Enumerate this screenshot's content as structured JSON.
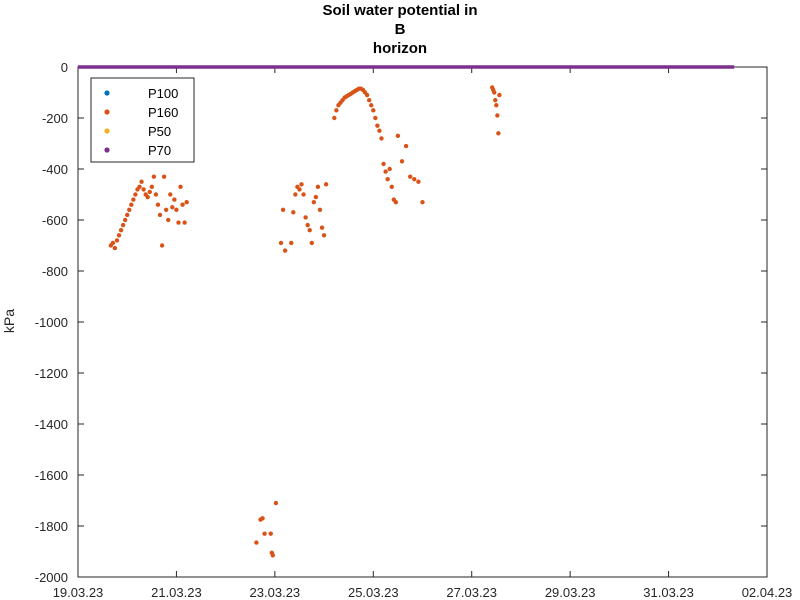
{
  "chart_data": {
    "type": "scatter",
    "title": [
      "Soil water potential in",
      "B",
      "horizon"
    ],
    "ylabel": "kPa",
    "xlabel": "",
    "x_scale": "date",
    "xlim": [
      "19.03.23",
      "02.04.23"
    ],
    "ylim": [
      -2000,
      0
    ],
    "xticks": [
      "19.03.23",
      "21.03.23",
      "23.03.23",
      "25.03.23",
      "27.03.23",
      "29.03.23",
      "31.03.23",
      "02.04.23"
    ],
    "yticks": [
      0,
      -200,
      -400,
      -600,
      -800,
      -1000,
      -1200,
      -1400,
      -1600,
      -1800,
      -2000
    ],
    "legend_position": "top-left",
    "grid": false,
    "series": [
      {
        "name": "P100",
        "color": "#0072BD",
        "marker": "dot",
        "points": []
      },
      {
        "name": "P160",
        "color": "#D95319",
        "marker": "dot",
        "points": [
          [
            "19.03.23 16:00",
            -700
          ],
          [
            "19.03.23 17:00",
            -690
          ],
          [
            "19.03.23 18:00",
            -710
          ],
          [
            "19.03.23 19:00",
            -680
          ],
          [
            "19.03.23 20:00",
            -660
          ],
          [
            "19.03.23 21:00",
            -640
          ],
          [
            "19.03.23 22:00",
            -620
          ],
          [
            "19.03.23 23:00",
            -600
          ],
          [
            "20.03.23 00:00",
            -580
          ],
          [
            "20.03.23 01:00",
            -560
          ],
          [
            "20.03.23 02:00",
            -540
          ],
          [
            "20.03.23 03:00",
            -520
          ],
          [
            "20.03.23 04:00",
            -500
          ],
          [
            "20.03.23 05:00",
            -480
          ],
          [
            "20.03.23 06:00",
            -470
          ],
          [
            "20.03.23 07:00",
            -450
          ],
          [
            "20.03.23 08:00",
            -480
          ],
          [
            "20.03.23 09:00",
            -500
          ],
          [
            "20.03.23 10:00",
            -510
          ],
          [
            "20.03.23 11:00",
            -490
          ],
          [
            "20.03.23 12:00",
            -470
          ],
          [
            "20.03.23 13:00",
            -430
          ],
          [
            "20.03.23 14:00",
            -500
          ],
          [
            "20.03.23 15:00",
            -540
          ],
          [
            "20.03.23 16:00",
            -580
          ],
          [
            "20.03.23 17:00",
            -700
          ],
          [
            "20.03.23 18:00",
            -430
          ],
          [
            "20.03.23 19:00",
            -560
          ],
          [
            "20.03.23 20:00",
            -600
          ],
          [
            "20.03.23 21:00",
            -500
          ],
          [
            "20.03.23 22:00",
            -550
          ],
          [
            "20.03.23 23:00",
            -520
          ],
          [
            "21.03.23 00:00",
            -560
          ],
          [
            "21.03.23 01:00",
            -610
          ],
          [
            "21.03.23 02:00",
            -470
          ],
          [
            "21.03.23 03:00",
            -540
          ],
          [
            "21.03.23 04:00",
            -610
          ],
          [
            "21.03.23 05:00",
            -530
          ],
          [
            "22.03.23 15:00",
            -1865
          ],
          [
            "22.03.23 17:00",
            -1775
          ],
          [
            "22.03.23 18:00",
            -1770
          ],
          [
            "22.03.23 19:00",
            -1830
          ],
          [
            "22.03.23 22:00",
            -1830
          ],
          [
            "22.03.23 22:30",
            -1905
          ],
          [
            "22.03.23 23:00",
            -1915
          ],
          [
            "23.03.23 00:30",
            -1710
          ],
          [
            "23.03.23 03:00",
            -690
          ],
          [
            "23.03.23 04:00",
            -560
          ],
          [
            "23.03.23 05:00",
            -720
          ],
          [
            "23.03.23 08:00",
            -690
          ],
          [
            "23.03.23 09:00",
            -570
          ],
          [
            "23.03.23 10:00",
            -500
          ],
          [
            "23.03.23 11:00",
            -470
          ],
          [
            "23.03.23 12:00",
            -480
          ],
          [
            "23.03.23 13:00",
            -460
          ],
          [
            "23.03.23 14:00",
            -500
          ],
          [
            "23.03.23 15:00",
            -590
          ],
          [
            "23.03.23 16:00",
            -620
          ],
          [
            "23.03.23 17:00",
            -640
          ],
          [
            "23.03.23 18:00",
            -690
          ],
          [
            "23.03.23 19:00",
            -530
          ],
          [
            "23.03.23 20:00",
            -510
          ],
          [
            "23.03.23 21:00",
            -470
          ],
          [
            "23.03.23 22:00",
            -560
          ],
          [
            "23.03.23 23:00",
            -630
          ],
          [
            "24.03.23 00:00",
            -660
          ],
          [
            "24.03.23 01:00",
            -460
          ],
          [
            "24.03.23 05:00",
            -200
          ],
          [
            "24.03.23 06:00",
            -170
          ],
          [
            "24.03.23 07:00",
            -150
          ],
          [
            "24.03.23 08:00",
            -140
          ],
          [
            "24.03.23 09:00",
            -130
          ],
          [
            "24.03.23 10:00",
            -120
          ],
          [
            "24.03.23 11:00",
            -115
          ],
          [
            "24.03.23 12:00",
            -110
          ],
          [
            "24.03.23 13:00",
            -105
          ],
          [
            "24.03.23 14:00",
            -100
          ],
          [
            "24.03.23 15:00",
            -95
          ],
          [
            "24.03.23 16:00",
            -90
          ],
          [
            "24.03.23 17:00",
            -85
          ],
          [
            "24.03.23 18:00",
            -85
          ],
          [
            "24.03.23 19:00",
            -90
          ],
          [
            "24.03.23 20:00",
            -100
          ],
          [
            "24.03.23 21:00",
            -110
          ],
          [
            "24.03.23 22:00",
            -130
          ],
          [
            "24.03.23 23:00",
            -150
          ],
          [
            "25.03.23 00:00",
            -170
          ],
          [
            "25.03.23 01:00",
            -200
          ],
          [
            "25.03.23 02:00",
            -230
          ],
          [
            "25.03.23 03:00",
            -250
          ],
          [
            "25.03.23 04:00",
            -280
          ],
          [
            "25.03.23 05:00",
            -380
          ],
          [
            "25.03.23 06:00",
            -410
          ],
          [
            "25.03.23 07:00",
            -440
          ],
          [
            "25.03.23 08:00",
            -400
          ],
          [
            "25.03.23 09:00",
            -470
          ],
          [
            "25.03.23 10:00",
            -520
          ],
          [
            "25.03.23 11:00",
            -530
          ],
          [
            "25.03.23 12:00",
            -270
          ],
          [
            "25.03.23 14:00",
            -370
          ],
          [
            "25.03.23 16:00",
            -310
          ],
          [
            "25.03.23 18:00",
            -430
          ],
          [
            "25.03.23 20:00",
            -440
          ],
          [
            "25.03.23 22:00",
            -450
          ],
          [
            "26.03.23 00:00",
            -530
          ],
          [
            "27.03.23 10:00",
            -80
          ],
          [
            "27.03.23 10:30",
            -90
          ],
          [
            "27.03.23 11:00",
            -100
          ],
          [
            "27.03.23 11:30",
            -130
          ],
          [
            "27.03.23 12:00",
            -150
          ],
          [
            "27.03.23 12:30",
            -190
          ],
          [
            "27.03.23 13:00",
            -260
          ],
          [
            "27.03.23 13:30",
            -110
          ]
        ]
      },
      {
        "name": "P50",
        "color": "#EDB120",
        "marker": "dot",
        "points": []
      },
      {
        "name": "P70",
        "color": "#7E2F8E",
        "marker": "dot",
        "line_segment": {
          "x_start": "19.03.23 00:00",
          "x_end": "01.04.23 08:00",
          "y": 0
        }
      }
    ]
  }
}
